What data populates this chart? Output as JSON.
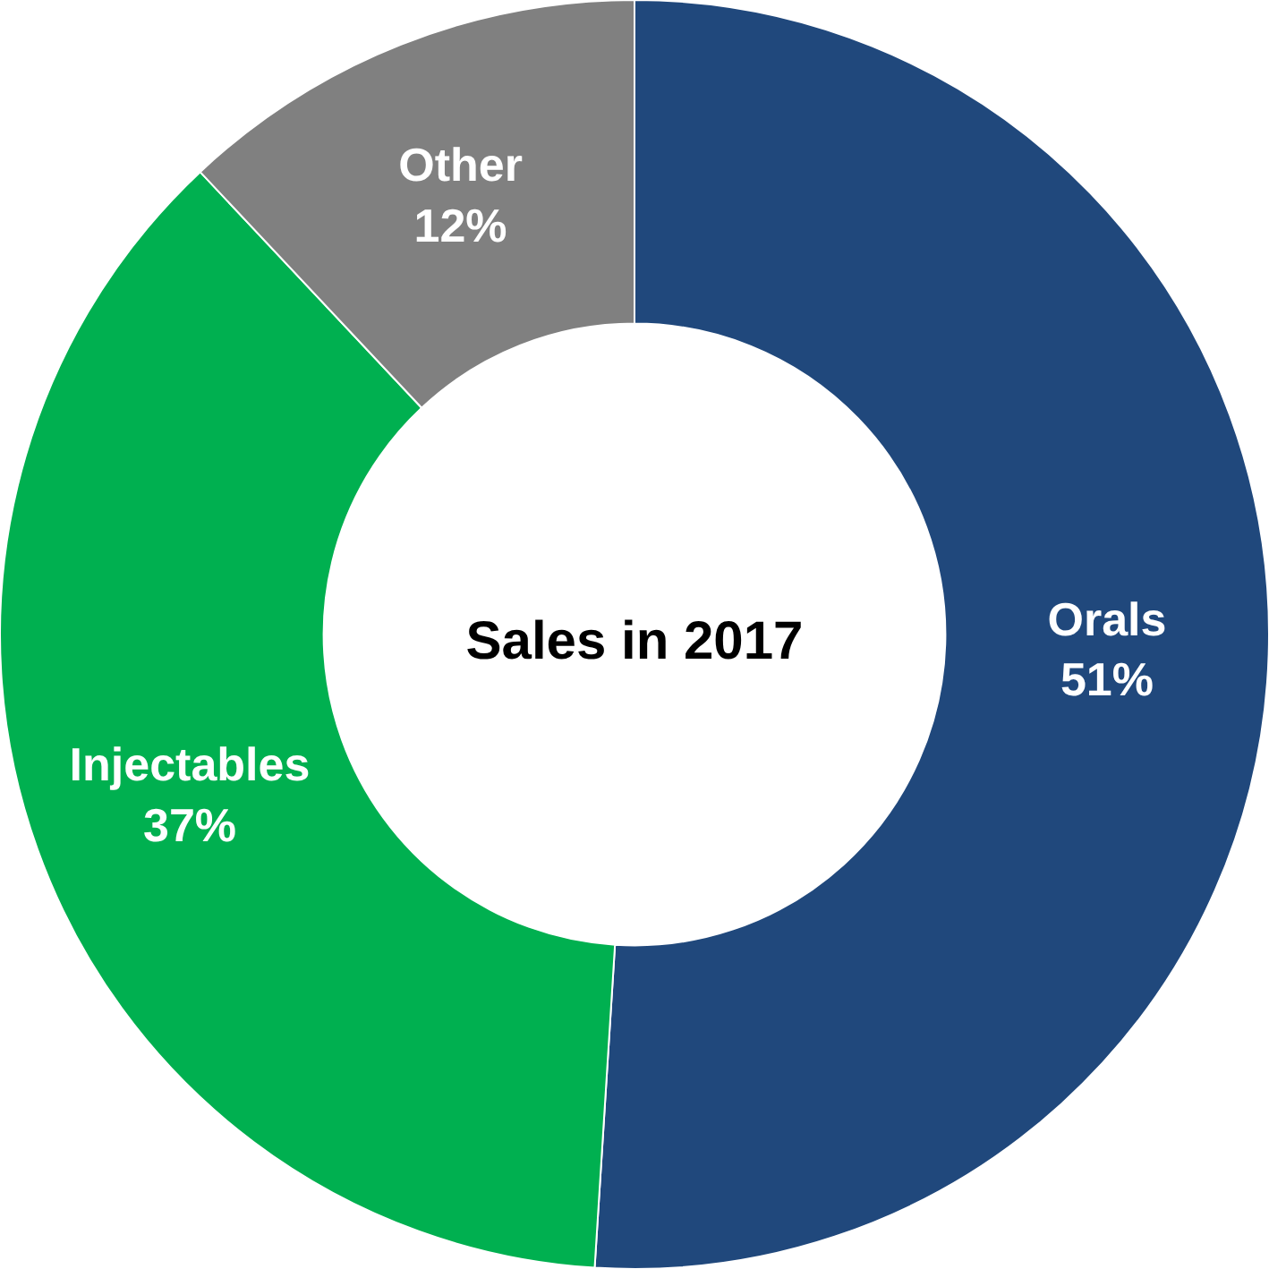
{
  "chart_data": {
    "type": "donut",
    "title": "Sales in 2017",
    "categories": [
      "Orals",
      "Injectables",
      "Other"
    ],
    "values": [
      51,
      37,
      12
    ],
    "value_labels": [
      "51%",
      "37%",
      "12%"
    ],
    "colors": [
      "#20487c",
      "#00b050",
      "#808080"
    ],
    "legend": false
  }
}
